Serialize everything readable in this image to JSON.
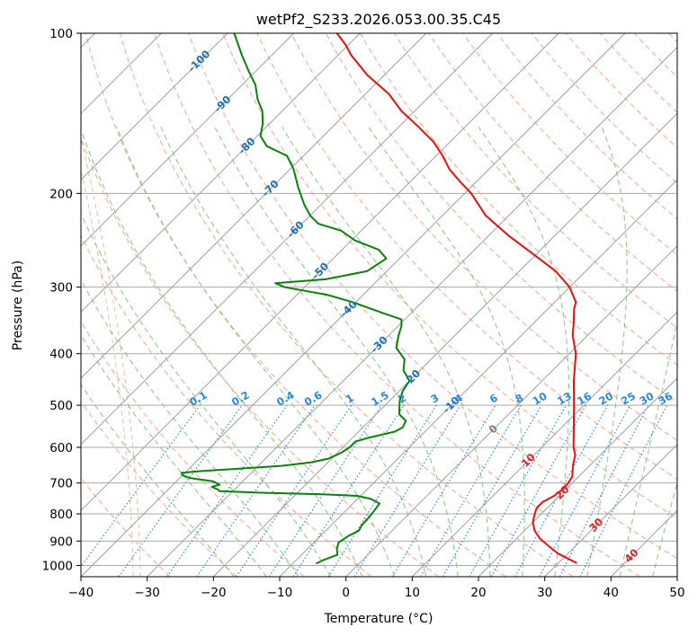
{
  "chart_data": {
    "type": "skew-t",
    "title": "wetPf2_S233.2026.053.00.35.C45",
    "xlabel": "Temperature (°C)",
    "ylabel": "Pressure (hPa)",
    "xlim": [
      -40,
      50
    ],
    "ylim_hpa": [
      1050,
      100
    ],
    "y_scale": "log",
    "grid": true,
    "x_ticks": [
      -40,
      -30,
      -20,
      -10,
      0,
      10,
      20,
      30,
      40,
      50
    ],
    "y_ticks": [
      100,
      200,
      300,
      400,
      500,
      600,
      700,
      800,
      900,
      1000
    ],
    "colors": {
      "temperature": "#e8100e",
      "dewpoint": "#0a820a",
      "isotherm": "#a0a0a0",
      "dry_adiabat": "#f7a58a",
      "moist_adiabat": "#86c586",
      "mixing_ratio": "#2e86de",
      "isotherm_label": "#1f6fb4",
      "hot_label": "#d62728",
      "zero_label": "#808080",
      "grid": "#aaaaaa",
      "stray_curve": "#d9c29a"
    },
    "isotherm_labels": [
      {
        "t": -100,
        "p": 113
      },
      {
        "t": -90,
        "p": 136
      },
      {
        "t": -80,
        "p": 163
      },
      {
        "t": -70,
        "p": 196
      },
      {
        "t": -60,
        "p": 234
      },
      {
        "t": -50,
        "p": 280
      },
      {
        "t": -40,
        "p": 330
      },
      {
        "t": -30,
        "p": 385
      },
      {
        "t": -20,
        "p": 445
      },
      {
        "t": -10,
        "p": 500
      },
      {
        "t": 0,
        "p": 555
      },
      {
        "t": 10,
        "p": 635
      },
      {
        "t": 20,
        "p": 730
      },
      {
        "t": 30,
        "p": 840
      },
      {
        "t": 40,
        "p": 960
      }
    ],
    "mixing_ratio_labels": [
      "0.1",
      "0.2",
      "0.4",
      "0.6",
      "1",
      "1.5",
      "2",
      "3",
      "4",
      "6",
      "8",
      "10",
      "13",
      "16",
      "20",
      "25",
      "30",
      "36"
    ],
    "mixing_ratio_values": [
      0.1,
      0.2,
      0.4,
      0.6,
      1,
      1.5,
      2,
      3,
      4,
      6,
      8,
      10,
      13,
      16,
      20,
      25,
      30,
      36
    ],
    "series": [
      {
        "points": [
          [
            990,
            32.8
          ],
          [
            975,
            31.2
          ],
          [
            950,
            28.5
          ],
          [
            920,
            26.0
          ],
          [
            890,
            23.5
          ],
          [
            860,
            21.5
          ],
          [
            830,
            20.0
          ],
          [
            800,
            19.0
          ],
          [
            780,
            18.4
          ],
          [
            760,
            18.4
          ],
          [
            740,
            19.2
          ],
          [
            720,
            19.5
          ],
          [
            700,
            19.4
          ],
          [
            680,
            19.0
          ],
          [
            650,
            17.5
          ],
          [
            620,
            16.2
          ],
          [
            600,
            14.8
          ],
          [
            550,
            11.8
          ],
          [
            500,
            8.5
          ],
          [
            450,
            4.8
          ],
          [
            400,
            1.0
          ],
          [
            370,
            -2.2
          ],
          [
            350,
            -4.0
          ],
          [
            330,
            -6.0
          ],
          [
            320,
            -6.8
          ],
          [
            300,
            -10.0
          ],
          [
            280,
            -14.5
          ],
          [
            260,
            -20.5
          ],
          [
            240,
            -27.0
          ],
          [
            220,
            -33.5
          ],
          [
            200,
            -39.0
          ],
          [
            190,
            -42.5
          ],
          [
            180,
            -46.0
          ],
          [
            170,
            -49.0
          ],
          [
            160,
            -52.5
          ],
          [
            150,
            -57.0
          ],
          [
            140,
            -62.0
          ],
          [
            130,
            -66.5
          ],
          [
            120,
            -72.5
          ],
          [
            110,
            -78.0
          ],
          [
            105,
            -80.5
          ],
          [
            100,
            -83.5
          ]
        ]
      },
      {
        "points": [
          [
            992,
            -6.5
          ],
          [
            975,
            -5.8
          ],
          [
            955,
            -4.6
          ],
          [
            930,
            -5.6
          ],
          [
            905,
            -6.3
          ],
          [
            880,
            -5.8
          ],
          [
            860,
            -5.0
          ],
          [
            840,
            -5.4
          ],
          [
            810,
            -5.5
          ],
          [
            780,
            -5.8
          ],
          [
            765,
            -6.0
          ],
          [
            750,
            -8.0
          ],
          [
            740,
            -10.5
          ],
          [
            735,
            -16.0
          ],
          [
            730,
            -25.5
          ],
          [
            725,
            -32.0
          ],
          [
            720,
            -32.5
          ],
          [
            712,
            -33.8
          ],
          [
            705,
            -33.0
          ],
          [
            695,
            -34.5
          ],
          [
            685,
            -38.5
          ],
          [
            677,
            -40.0
          ],
          [
            670,
            -40.5
          ],
          [
            665,
            -38.0
          ],
          [
            660,
            -34.0
          ],
          [
            650,
            -26.5
          ],
          [
            640,
            -22.5
          ],
          [
            630,
            -20.5
          ],
          [
            615,
            -19.5
          ],
          [
            600,
            -19.0
          ],
          [
            585,
            -19.0
          ],
          [
            575,
            -17.5
          ],
          [
            560,
            -14.5
          ],
          [
            550,
            -14.0
          ],
          [
            535,
            -14.5
          ],
          [
            520,
            -16.5
          ],
          [
            505,
            -17.5
          ],
          [
            490,
            -18.5
          ],
          [
            470,
            -19.5
          ],
          [
            450,
            -20.0
          ],
          [
            430,
            -22.5
          ],
          [
            410,
            -24.0
          ],
          [
            390,
            -27.0
          ],
          [
            370,
            -28.5
          ],
          [
            355,
            -29.5
          ],
          [
            345,
            -30.5
          ],
          [
            335,
            -34.5
          ],
          [
            320,
            -40.5
          ],
          [
            310,
            -45.5
          ],
          [
            300,
            -53.0
          ],
          [
            295,
            -55.0
          ],
          [
            290,
            -48.0
          ],
          [
            280,
            -43.0
          ],
          [
            265,
            -42.0
          ],
          [
            255,
            -44.5
          ],
          [
            245,
            -49.5
          ],
          [
            235,
            -53.0
          ],
          [
            228,
            -57.5
          ],
          [
            220,
            -60.0
          ],
          [
            210,
            -62.5
          ],
          [
            195,
            -66.0
          ],
          [
            180,
            -69.5
          ],
          [
            170,
            -72.5
          ],
          [
            163,
            -77.0
          ],
          [
            156,
            -79.5
          ],
          [
            148,
            -81.0
          ],
          [
            140,
            -83.0
          ],
          [
            133,
            -85.5
          ],
          [
            125,
            -88.0
          ],
          [
            118,
            -91.0
          ],
          [
            110,
            -94.5
          ],
          [
            100,
            -99.0
          ]
        ]
      }
    ]
  }
}
